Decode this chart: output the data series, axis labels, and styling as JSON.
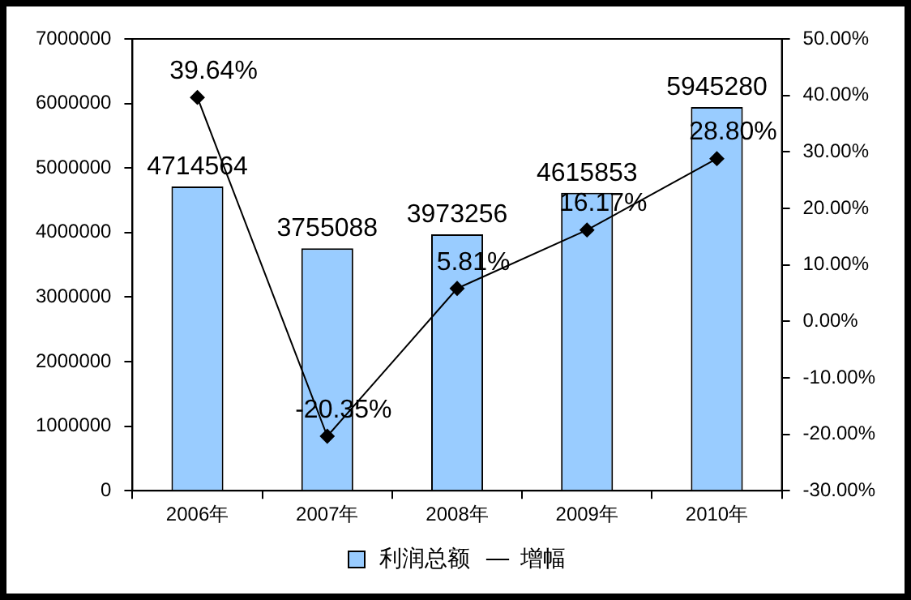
{
  "chart_data": {
    "type": "bar",
    "categories": [
      "2006年",
      "2007年",
      "2008年",
      "2009年",
      "2010年"
    ],
    "series": [
      {
        "name": "利润总额",
        "color": "#99ccff",
        "values": [
          4714564,
          3755088,
          3973256,
          4615853,
          5945280
        ],
        "value_labels": [
          "4714564",
          "3755088",
          "3973256",
          "4615853",
          "5945280"
        ]
      },
      {
        "name": "增幅",
        "type": "line",
        "axis": "y2",
        "color": "#000000",
        "marker": "diamond",
        "values": [
          39.64,
          -20.35,
          5.81,
          16.17,
          28.8
        ],
        "value_labels": [
          "39.64%",
          "-20.35%",
          "5.81%",
          "16.17%",
          "28.80%"
        ]
      }
    ],
    "ylim": [
      0,
      7000000
    ],
    "yticks": [
      0,
      1000000,
      2000000,
      3000000,
      4000000,
      5000000,
      6000000,
      7000000
    ],
    "y2lim": [
      -30,
      50
    ],
    "y2ticks": [
      {
        "value": -30,
        "label": "-30.00%"
      },
      {
        "value": -20,
        "label": "-20.00%"
      },
      {
        "value": -10,
        "label": "-10.00%"
      },
      {
        "value": 0,
        "label": "0.00%"
      },
      {
        "value": 10,
        "label": "10.00%"
      },
      {
        "value": 20,
        "label": "20.00%"
      },
      {
        "value": 30,
        "label": "30.00%"
      },
      {
        "value": 40,
        "label": "40.00%"
      },
      {
        "value": 50,
        "label": "50.00%"
      }
    ],
    "grid": false,
    "legend": "bottom"
  }
}
